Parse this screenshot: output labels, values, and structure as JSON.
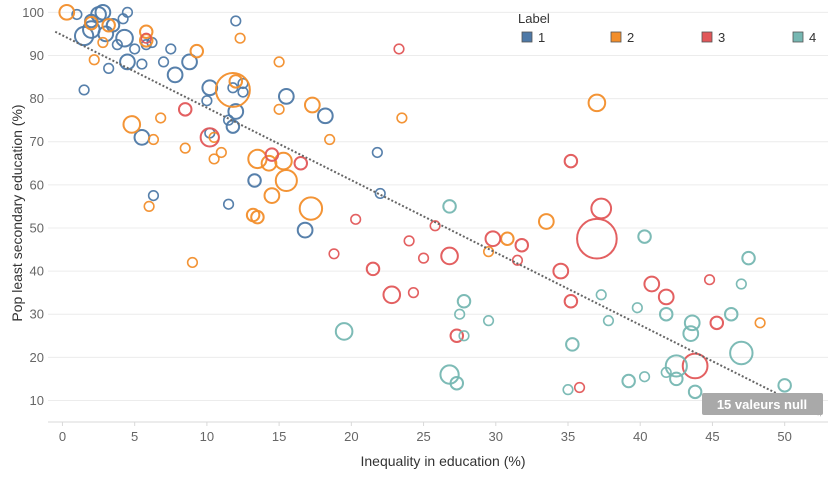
{
  "chart_data": {
    "type": "scatter",
    "xlabel": "Inequality in education (%)",
    "ylabel": "Pop least secondary education (%)",
    "xlim": [
      -1,
      53
    ],
    "ylim": [
      5,
      101
    ],
    "xticks": [
      0,
      5,
      10,
      15,
      20,
      25,
      30,
      35,
      40,
      45,
      50
    ],
    "yticks": [
      10,
      20,
      30,
      40,
      50,
      60,
      70,
      80,
      90,
      100
    ],
    "grid": "horizontal",
    "legend": {
      "title": "Label",
      "placement": "top-right",
      "entries": [
        {
          "name": "1",
          "color": "#4e79a7"
        },
        {
          "name": "2",
          "color": "#f28e2b"
        },
        {
          "name": "3",
          "color": "#e15759"
        },
        {
          "name": "4",
          "color": "#76b7b2"
        }
      ]
    },
    "trend_line": {
      "x0": -0.5,
      "y0": 95.5,
      "x1": 52.5,
      "y1": 6.5,
      "color": "#666666",
      "style": "dotted"
    },
    "null_badge": {
      "text": "15 valeurs null",
      "color": "#a9a9a9"
    },
    "series": [
      {
        "name": "1",
        "color": "#4e79a7",
        "points": [
          {
            "x": 1.5,
            "y": 94.5,
            "size": 5
          },
          {
            "x": 2.0,
            "y": 96.0,
            "size": 4
          },
          {
            "x": 2.5,
            "y": 99.5,
            "size": 3
          },
          {
            "x": 3.0,
            "y": 95.0,
            "size": 3
          },
          {
            "x": 2.0,
            "y": 98.0,
            "size": 2
          },
          {
            "x": 2.8,
            "y": 100.0,
            "size": 3
          },
          {
            "x": 1.0,
            "y": 99.5,
            "size": 1
          },
          {
            "x": 3.5,
            "y": 97.0,
            "size": 2
          },
          {
            "x": 4.2,
            "y": 98.5,
            "size": 1
          },
          {
            "x": 4.5,
            "y": 100.0,
            "size": 1
          },
          {
            "x": 4.3,
            "y": 94.0,
            "size": 4
          },
          {
            "x": 3.8,
            "y": 92.5,
            "size": 1
          },
          {
            "x": 4.5,
            "y": 88.5,
            "size": 3
          },
          {
            "x": 5.0,
            "y": 91.5,
            "size": 1
          },
          {
            "x": 5.8,
            "y": 92.5,
            "size": 1
          },
          {
            "x": 6.2,
            "y": 93.0,
            "size": 1
          },
          {
            "x": 3.2,
            "y": 87.0,
            "size": 1
          },
          {
            "x": 5.5,
            "y": 88.0,
            "size": 1
          },
          {
            "x": 7.0,
            "y": 88.5,
            "size": 1
          },
          {
            "x": 7.5,
            "y": 91.5,
            "size": 1
          },
          {
            "x": 8.8,
            "y": 88.5,
            "size": 3
          },
          {
            "x": 7.8,
            "y": 85.5,
            "size": 3
          },
          {
            "x": 1.5,
            "y": 82.0,
            "size": 1
          },
          {
            "x": 10.2,
            "y": 82.5,
            "size": 3
          },
          {
            "x": 10.0,
            "y": 79.5,
            "size": 1
          },
          {
            "x": 11.8,
            "y": 82.5,
            "size": 1
          },
          {
            "x": 12.5,
            "y": 83.5,
            "size": 1
          },
          {
            "x": 12.5,
            "y": 81.5,
            "size": 1
          },
          {
            "x": 15.5,
            "y": 80.5,
            "size": 3
          },
          {
            "x": 12.0,
            "y": 77.0,
            "size": 3
          },
          {
            "x": 11.5,
            "y": 75.0,
            "size": 1
          },
          {
            "x": 11.8,
            "y": 73.5,
            "size": 2
          },
          {
            "x": 10.2,
            "y": 72.0,
            "size": 1
          },
          {
            "x": 12.0,
            "y": 98.0,
            "size": 1
          },
          {
            "x": 18.2,
            "y": 76.0,
            "size": 3
          },
          {
            "x": 5.5,
            "y": 71.0,
            "size": 3
          },
          {
            "x": 13.3,
            "y": 61.0,
            "size": 2
          },
          {
            "x": 6.3,
            "y": 57.5,
            "size": 1
          },
          {
            "x": 11.5,
            "y": 55.5,
            "size": 1
          },
          {
            "x": 16.8,
            "y": 49.5,
            "size": 3
          },
          {
            "x": 21.8,
            "y": 67.5,
            "size": 1
          },
          {
            "x": 22.0,
            "y": 58.0,
            "size": 1
          }
        ]
      },
      {
        "name": "2",
        "color": "#f28e2b",
        "points": [
          {
            "x": 0.3,
            "y": 100.0,
            "size": 3
          },
          {
            "x": 2.0,
            "y": 97.5,
            "size": 2
          },
          {
            "x": 3.2,
            "y": 97.0,
            "size": 2
          },
          {
            "x": 2.8,
            "y": 93.0,
            "size": 1
          },
          {
            "x": 5.8,
            "y": 95.5,
            "size": 2
          },
          {
            "x": 5.8,
            "y": 93.5,
            "size": 2
          },
          {
            "x": 9.3,
            "y": 91.0,
            "size": 2
          },
          {
            "x": 2.2,
            "y": 89.0,
            "size": 1
          },
          {
            "x": 12.3,
            "y": 94.0,
            "size": 1
          },
          {
            "x": 15.0,
            "y": 88.5,
            "size": 1
          },
          {
            "x": 11.8,
            "y": 82.0,
            "size": 20
          },
          {
            "x": 12.0,
            "y": 84.0,
            "size": 2
          },
          {
            "x": 17.3,
            "y": 78.5,
            "size": 3
          },
          {
            "x": 15.0,
            "y": 77.5,
            "size": 1
          },
          {
            "x": 23.5,
            "y": 75.5,
            "size": 1
          },
          {
            "x": 4.8,
            "y": 74.0,
            "size": 4
          },
          {
            "x": 6.8,
            "y": 75.5,
            "size": 1
          },
          {
            "x": 10.5,
            "y": 71.0,
            "size": 1
          },
          {
            "x": 8.5,
            "y": 68.5,
            "size": 1
          },
          {
            "x": 6.3,
            "y": 70.5,
            "size": 1
          },
          {
            "x": 10.5,
            "y": 66.0,
            "size": 1
          },
          {
            "x": 11.0,
            "y": 67.5,
            "size": 1
          },
          {
            "x": 13.5,
            "y": 66.0,
            "size": 5
          },
          {
            "x": 14.3,
            "y": 65.0,
            "size": 3
          },
          {
            "x": 15.3,
            "y": 65.5,
            "size": 4
          },
          {
            "x": 15.5,
            "y": 61.0,
            "size": 7
          },
          {
            "x": 17.2,
            "y": 54.5,
            "size": 8
          },
          {
            "x": 14.5,
            "y": 57.5,
            "size": 3
          },
          {
            "x": 13.2,
            "y": 53.0,
            "size": 2
          },
          {
            "x": 13.5,
            "y": 52.5,
            "size": 2
          },
          {
            "x": 6.0,
            "y": 55.0,
            "size": 1
          },
          {
            "x": 9.0,
            "y": 42.0,
            "size": 1
          },
          {
            "x": 18.5,
            "y": 70.5,
            "size": 1
          },
          {
            "x": 37.0,
            "y": 79.0,
            "size": 4
          },
          {
            "x": 33.5,
            "y": 51.5,
            "size": 3
          },
          {
            "x": 30.8,
            "y": 47.5,
            "size": 2
          },
          {
            "x": 48.3,
            "y": 28.0,
            "size": 1
          },
          {
            "x": 29.5,
            "y": 44.5,
            "size": 1
          }
        ]
      },
      {
        "name": "3",
        "color": "#e15759",
        "points": [
          {
            "x": 5.8,
            "y": 94.0,
            "size": 1
          },
          {
            "x": 23.3,
            "y": 91.5,
            "size": 1
          },
          {
            "x": 8.5,
            "y": 77.5,
            "size": 2
          },
          {
            "x": 10.2,
            "y": 71.0,
            "size": 5
          },
          {
            "x": 14.5,
            "y": 67.0,
            "size": 2
          },
          {
            "x": 16.5,
            "y": 65.0,
            "size": 2
          },
          {
            "x": 35.2,
            "y": 65.5,
            "size": 2
          },
          {
            "x": 37.3,
            "y": 54.5,
            "size": 6
          },
          {
            "x": 37.0,
            "y": 47.5,
            "size": 28
          },
          {
            "x": 29.8,
            "y": 47.5,
            "size": 3
          },
          {
            "x": 26.8,
            "y": 43.5,
            "size": 4
          },
          {
            "x": 20.3,
            "y": 52.0,
            "size": 1
          },
          {
            "x": 24.0,
            "y": 47.0,
            "size": 1
          },
          {
            "x": 31.8,
            "y": 46.0,
            "size": 2
          },
          {
            "x": 31.5,
            "y": 42.5,
            "size": 1
          },
          {
            "x": 21.5,
            "y": 40.5,
            "size": 2
          },
          {
            "x": 25.0,
            "y": 43.0,
            "size": 1
          },
          {
            "x": 34.5,
            "y": 40.0,
            "size": 3
          },
          {
            "x": 22.8,
            "y": 34.5,
            "size": 4
          },
          {
            "x": 24.3,
            "y": 35.0,
            "size": 1
          },
          {
            "x": 35.2,
            "y": 33.0,
            "size": 2
          },
          {
            "x": 40.8,
            "y": 37.0,
            "size": 3
          },
          {
            "x": 41.8,
            "y": 34.0,
            "size": 3
          },
          {
            "x": 44.8,
            "y": 38.0,
            "size": 1
          },
          {
            "x": 45.3,
            "y": 28.0,
            "size": 2
          },
          {
            "x": 27.3,
            "y": 25.0,
            "size": 2
          },
          {
            "x": 43.8,
            "y": 18.0,
            "size": 10
          },
          {
            "x": 35.8,
            "y": 13.0,
            "size": 1
          },
          {
            "x": 18.8,
            "y": 44.0,
            "size": 1
          },
          {
            "x": 25.8,
            "y": 50.5,
            "size": 1
          }
        ]
      },
      {
        "name": "4",
        "color": "#76b7b2",
        "points": [
          {
            "x": 26.8,
            "y": 55.0,
            "size": 2
          },
          {
            "x": 40.3,
            "y": 48.0,
            "size": 2
          },
          {
            "x": 47.5,
            "y": 43.0,
            "size": 2
          },
          {
            "x": 47.0,
            "y": 37.0,
            "size": 1
          },
          {
            "x": 37.3,
            "y": 34.5,
            "size": 1
          },
          {
            "x": 27.8,
            "y": 33.0,
            "size": 2
          },
          {
            "x": 27.5,
            "y": 30.0,
            "size": 1
          },
          {
            "x": 39.8,
            "y": 31.5,
            "size": 1
          },
          {
            "x": 41.8,
            "y": 30.0,
            "size": 2
          },
          {
            "x": 43.6,
            "y": 28.0,
            "size": 3
          },
          {
            "x": 46.3,
            "y": 30.0,
            "size": 2
          },
          {
            "x": 29.5,
            "y": 28.5,
            "size": 1
          },
          {
            "x": 37.8,
            "y": 28.5,
            "size": 1
          },
          {
            "x": 19.5,
            "y": 26.0,
            "size": 4
          },
          {
            "x": 27.8,
            "y": 25.0,
            "size": 1
          },
          {
            "x": 43.5,
            "y": 25.5,
            "size": 3
          },
          {
            "x": 35.3,
            "y": 23.0,
            "size": 2
          },
          {
            "x": 47.0,
            "y": 21.0,
            "size": 8
          },
          {
            "x": 42.5,
            "y": 18.0,
            "size": 7
          },
          {
            "x": 41.8,
            "y": 16.5,
            "size": 1
          },
          {
            "x": 40.3,
            "y": 15.5,
            "size": 1
          },
          {
            "x": 42.5,
            "y": 15.0,
            "size": 2
          },
          {
            "x": 39.2,
            "y": 14.5,
            "size": 2
          },
          {
            "x": 26.8,
            "y": 16.0,
            "size": 5
          },
          {
            "x": 27.3,
            "y": 14.0,
            "size": 2
          },
          {
            "x": 35.0,
            "y": 12.5,
            "size": 1
          },
          {
            "x": 43.8,
            "y": 12.0,
            "size": 2
          },
          {
            "x": 50.0,
            "y": 13.5,
            "size": 2
          }
        ]
      }
    ]
  }
}
